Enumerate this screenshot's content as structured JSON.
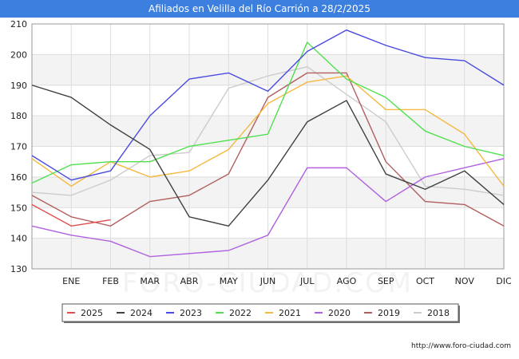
{
  "title": "Afiliados en Velilla del Río Carrión a 28/2/2025",
  "source": "http://www.foro-ciudad.com",
  "watermark": "FORO-CIUDAD.COM",
  "chart_data": {
    "type": "line",
    "title": "Afiliados en Velilla del Río Carrión a 28/2/2025",
    "x": [
      "",
      "ENE",
      "FEB",
      "MAR",
      "ABR",
      "MAY",
      "JUN",
      "JUL",
      "AGO",
      "SEP",
      "OCT",
      "NOV",
      "DIC"
    ],
    "ylim": [
      130,
      210
    ],
    "yticks": [
      130,
      140,
      150,
      160,
      170,
      180,
      190,
      200,
      210
    ],
    "grid": true,
    "legend_position": "bottom",
    "series": [
      {
        "name": "2025",
        "color": "#e05050",
        "values": [
          151,
          144,
          146,
          null,
          null,
          null,
          null,
          null,
          null,
          null,
          null,
          null,
          null
        ]
      },
      {
        "name": "2024",
        "color": "#404040",
        "values": [
          190,
          186,
          177,
          169,
          147,
          144,
          159,
          178,
          185,
          161,
          156,
          162,
          151
        ]
      },
      {
        "name": "2023",
        "color": "#4a4ae0",
        "values": [
          167,
          159,
          162,
          180,
          192,
          194,
          188,
          201,
          208,
          203,
          199,
          198,
          190
        ]
      },
      {
        "name": "2022",
        "color": "#50e050",
        "values": [
          158,
          164,
          165,
          165,
          170,
          172,
          174,
          204,
          192,
          186,
          175,
          170,
          167
        ]
      },
      {
        "name": "2021",
        "color": "#f5b840",
        "values": [
          166,
          157,
          165,
          160,
          162,
          169,
          184,
          191,
          193,
          182,
          182,
          174,
          157
        ]
      },
      {
        "name": "2020",
        "color": "#b060e0",
        "values": [
          144,
          141,
          139,
          134,
          135,
          136,
          141,
          163,
          163,
          152,
          160,
          163,
          166
        ]
      },
      {
        "name": "2019",
        "color": "#b06060",
        "values": [
          154,
          147,
          144,
          152,
          154,
          161,
          186,
          194,
          194,
          165,
          152,
          151,
          144
        ]
      },
      {
        "name": "2018",
        "color": "#cccccc",
        "values": [
          155,
          154,
          159,
          167,
          168,
          189,
          193,
          196,
          187,
          178,
          157,
          156,
          154
        ]
      }
    ]
  }
}
